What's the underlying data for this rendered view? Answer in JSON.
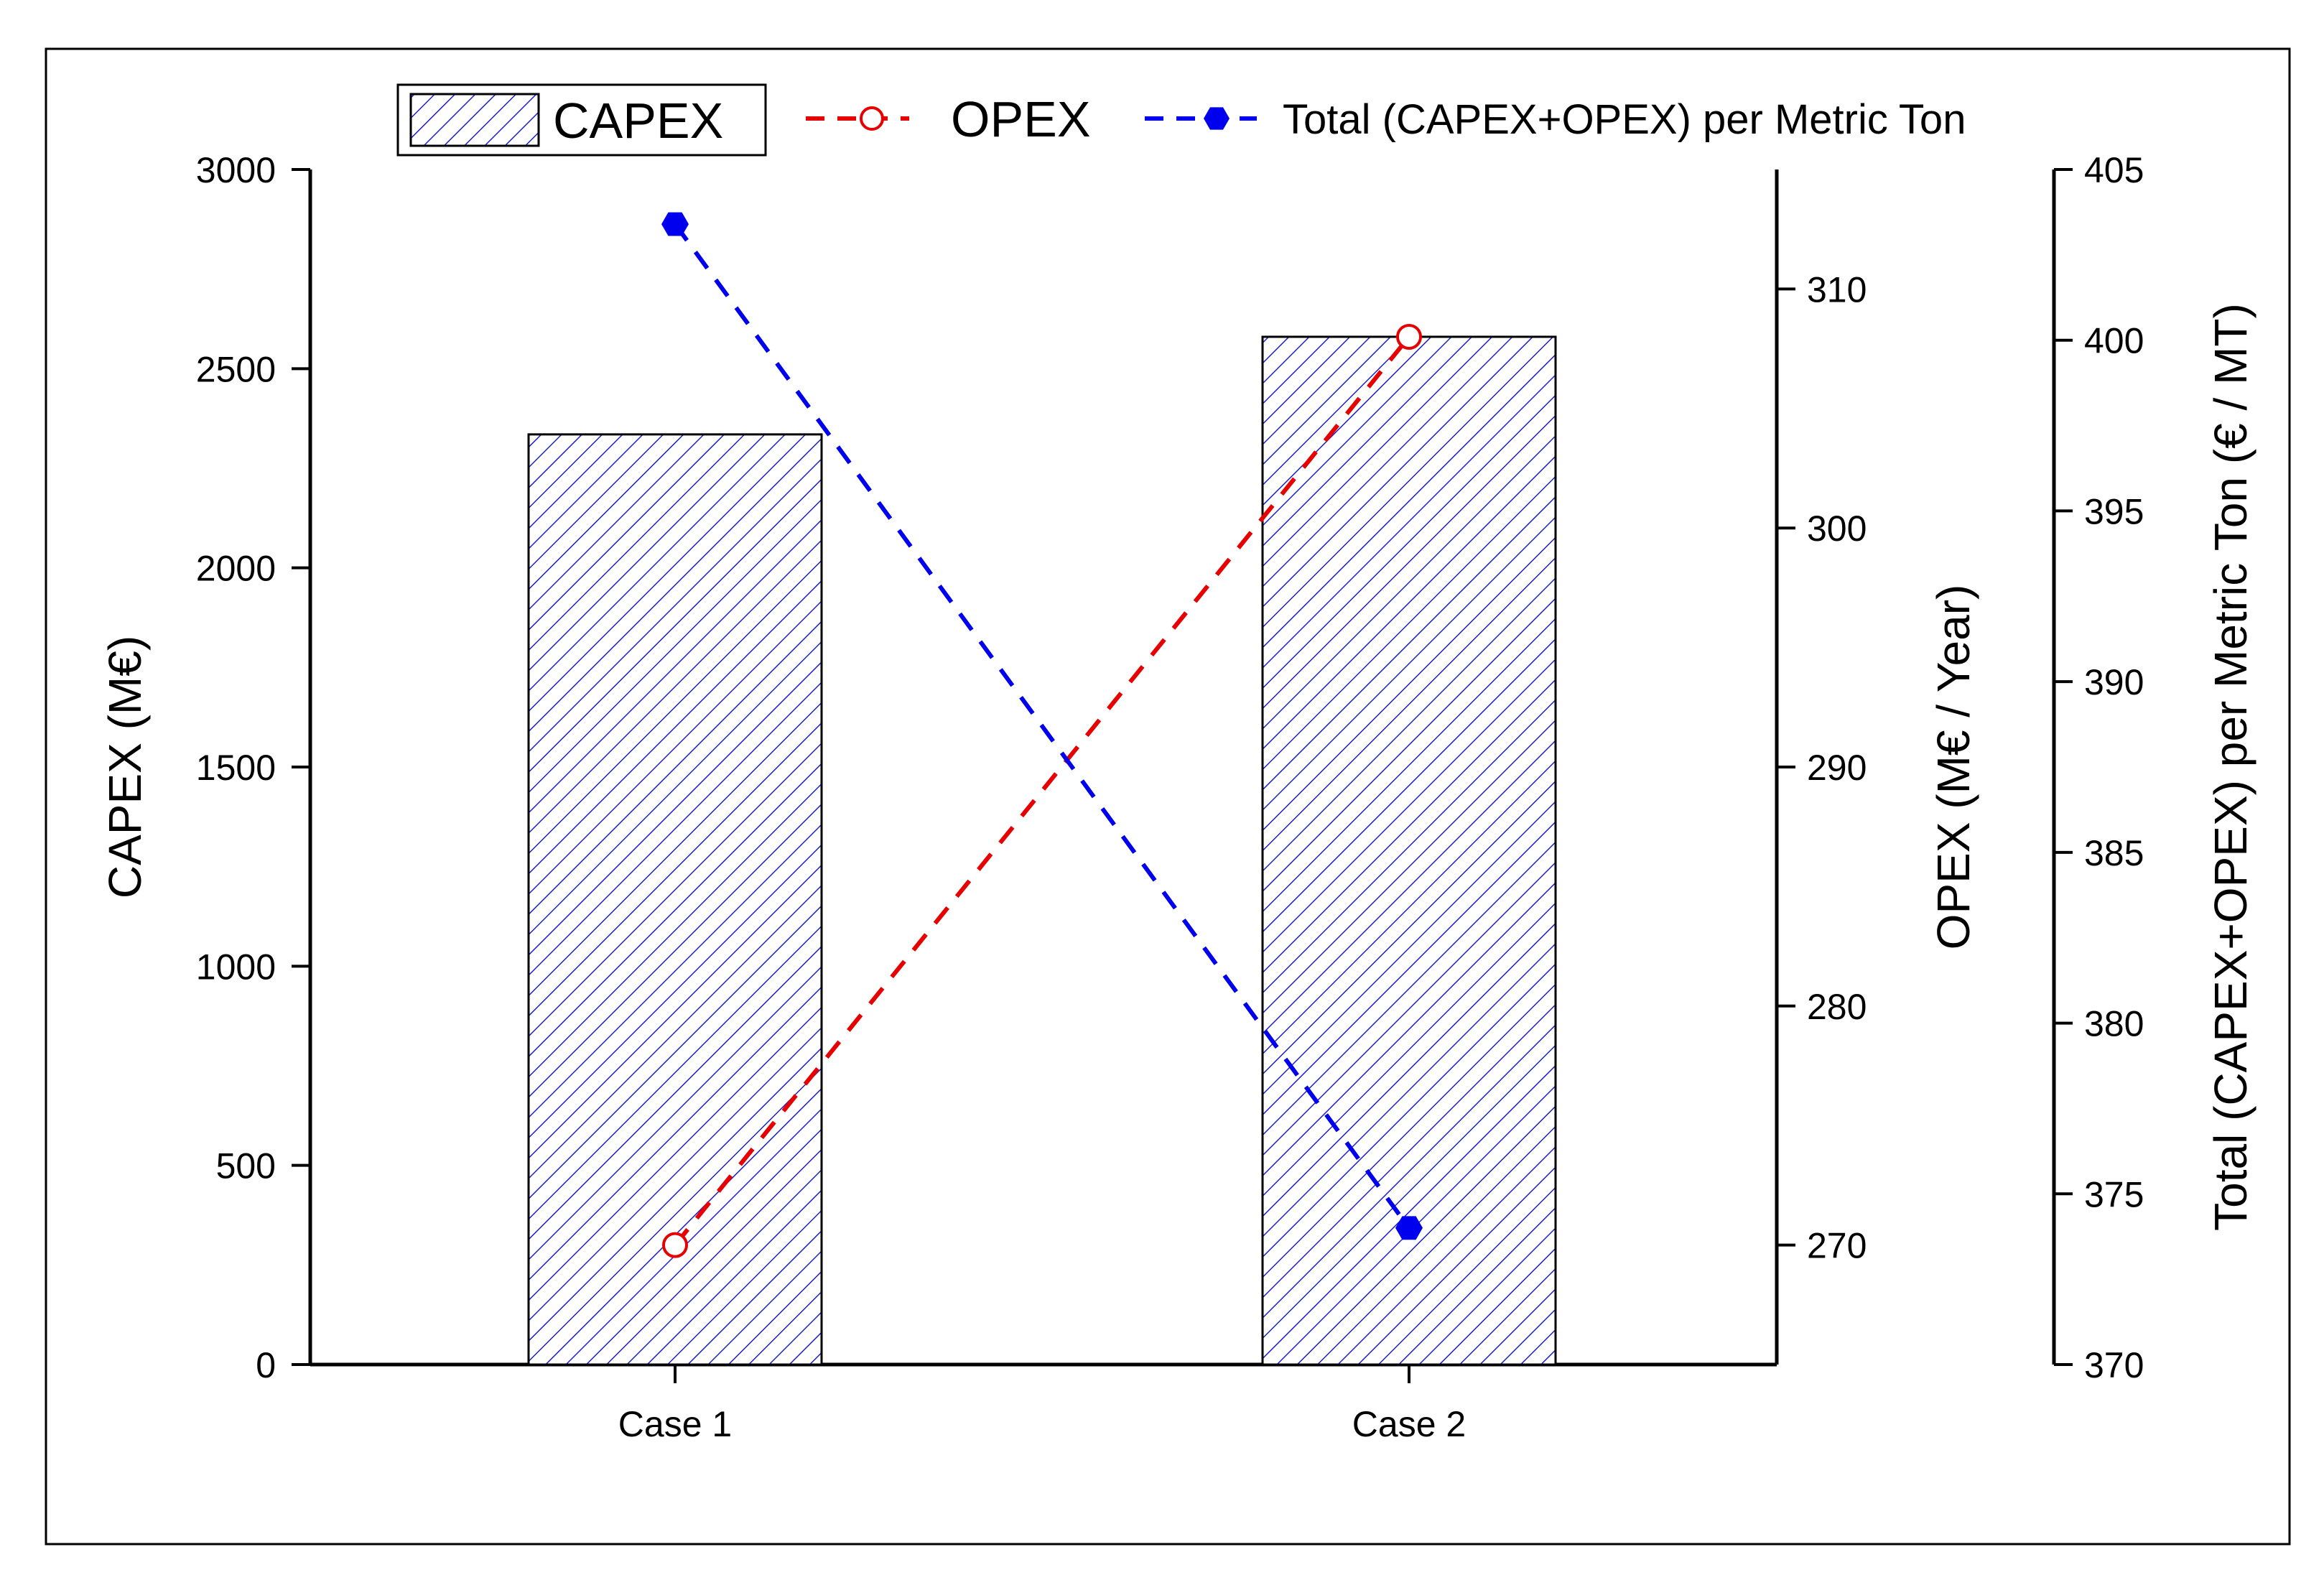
{
  "chart_data": {
    "type": "bar",
    "categories": [
      "Case 1",
      "Case 2"
    ],
    "series": [
      {
        "name": "CAPEX",
        "type": "bar",
        "axis": "left",
        "values": [
          2335,
          2580
        ]
      },
      {
        "name": "OPEX",
        "type": "line",
        "axis": "right1",
        "values": [
          270,
          308
        ]
      },
      {
        "name": "Total (CAPEX+OPEX) per Metric Ton",
        "type": "line",
        "axis": "right2",
        "values": [
          403.4,
          374
        ]
      }
    ],
    "axes": {
      "left": {
        "label": "CAPEX (M€)",
        "ylim": [
          0,
          3000
        ],
        "ticks": [
          "0",
          "500",
          "1000",
          "1500",
          "2000",
          "2500",
          "3000"
        ]
      },
      "right1": {
        "label": "OPEX (M€ / Year)",
        "ylim": [
          265,
          315
        ],
        "ticks": [
          "270",
          "280",
          "290",
          "300",
          "310"
        ]
      },
      "right2": {
        "label": "Total (CAPEX+OPEX) per Metric Ton (€ / MT)",
        "ylim": [
          370,
          405
        ],
        "ticks": [
          "370",
          "375",
          "380",
          "385",
          "390",
          "395",
          "400",
          "405"
        ]
      }
    },
    "legend": {
      "placement": "top",
      "entries": [
        "CAPEX",
        "OPEX",
        "Total (CAPEX+OPEX) per Metric Ton"
      ]
    },
    "grid": false,
    "colors": {
      "capex": "#1a1acc",
      "opex": "#e60000",
      "total": "#0000ee"
    }
  }
}
